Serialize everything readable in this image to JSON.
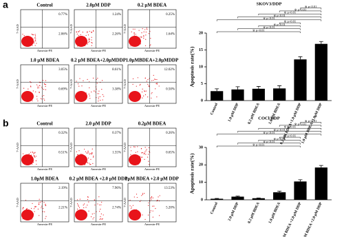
{
  "panels": [
    {
      "label": "a",
      "axis_x": "Annexin-PE",
      "axis_y": "7-AAD",
      "plots": [
        {
          "title": "Control",
          "ur": "0.77%",
          "lr": "2.06%"
        },
        {
          "title": "2.0μM DDP",
          "ur": "1.24%",
          "lr": "2.26%"
        },
        {
          "title": "0.2 μM BDEA",
          "ur": "0.25%",
          "lr": "1.64%"
        },
        {
          "title": "1.0 μM BDEA",
          "ur": "3.05%",
          "lr": "0.69%"
        },
        {
          "title": "0.2 μM BDEA+2.0μMDDP",
          "ur": "8.61%",
          "lr": "3.38%"
        },
        {
          "title": "1.0μMBDEA+2.0μMDDP",
          "ur": "12.02%",
          "lr": "0.50%"
        }
      ]
    },
    {
      "label": "b",
      "axis_x": "Annexin-PE",
      "axis_y": "7-AAD",
      "plots": [
        {
          "title": "Control",
          "ur": "0.32%",
          "lr": "0.51%"
        },
        {
          "title": "2.0 μM DDP",
          "ur": "0.37%",
          "lr": "1.55%"
        },
        {
          "title": "0.2μM BDEA",
          "ur": "0.26%",
          "lr": "0.65%"
        },
        {
          "title": "1.0μM BDEA",
          "ur": "2.19%",
          "lr": "2.21%"
        },
        {
          "title": "0.2 μM BDEA +2.0 μM DDP",
          "ur": "7.96%",
          "lr": "2.74%"
        },
        {
          "title": "1μM BDEA +2.0 μM DDP",
          "ur": "13.53%",
          "lr": "5.20%"
        }
      ]
    }
  ],
  "chart_data": [
    {
      "type": "bar",
      "title": "SKOV3/DDP",
      "ylabel": "Apoptosis rate(%)",
      "categories": [
        "Control",
        "1.0 μM DDP",
        "0.2 μM BDEA",
        "1.0 μM BDEA",
        "0.2 μM BDEA+1.0 μM DDP",
        "1.0 μM BDEA+1.0μM DDP"
      ],
      "values": [
        2.8,
        3.3,
        3.5,
        3.6,
        12.2,
        16.8
      ],
      "errors": [
        0.7,
        0.8,
        0.7,
        0.8,
        0.8,
        0.7
      ],
      "color": "#000000",
      "ylim": [
        0,
        20
      ],
      "yticks": [
        0,
        5,
        10,
        15,
        20
      ],
      "annotations": [
        "※ p<0.01",
        "※ p<0.01",
        "※ p<0.01",
        "※ p<0.01",
        "※ p<0.01",
        "※ p<0.01",
        "※ p<0.01",
        "※ p<0.01",
        "※ p<0.01"
      ]
    },
    {
      "type": "bar",
      "title": "COCl/DDP",
      "ylabel": "Apoptosis rate(%)",
      "categories": [
        "Control",
        "2.0 μM DDP",
        "0.2 μM BDEA",
        "1.0 μM BDEA",
        "0.2 μM BDEA +2.0 μM DDP",
        "1.0 μM BDEA +2.0 μM DDP"
      ],
      "values": [
        0.6,
        1.8,
        0.9,
        4.3,
        10.5,
        18.5
      ],
      "errors": [
        0.2,
        0.3,
        0.2,
        0.6,
        1.0,
        1.2
      ],
      "color": "#000000",
      "ylim": [
        0,
        30
      ],
      "yticks": [
        0,
        10,
        20,
        30
      ],
      "annotations": [
        "※ p<0.01",
        "※ p<0.01",
        "※ p<0.01",
        "※ p<0.01",
        "※ p<0.01",
        "※ p<0.01",
        "※ p<0.01",
        "※ p<0.01",
        "※ p<0.01"
      ]
    }
  ]
}
